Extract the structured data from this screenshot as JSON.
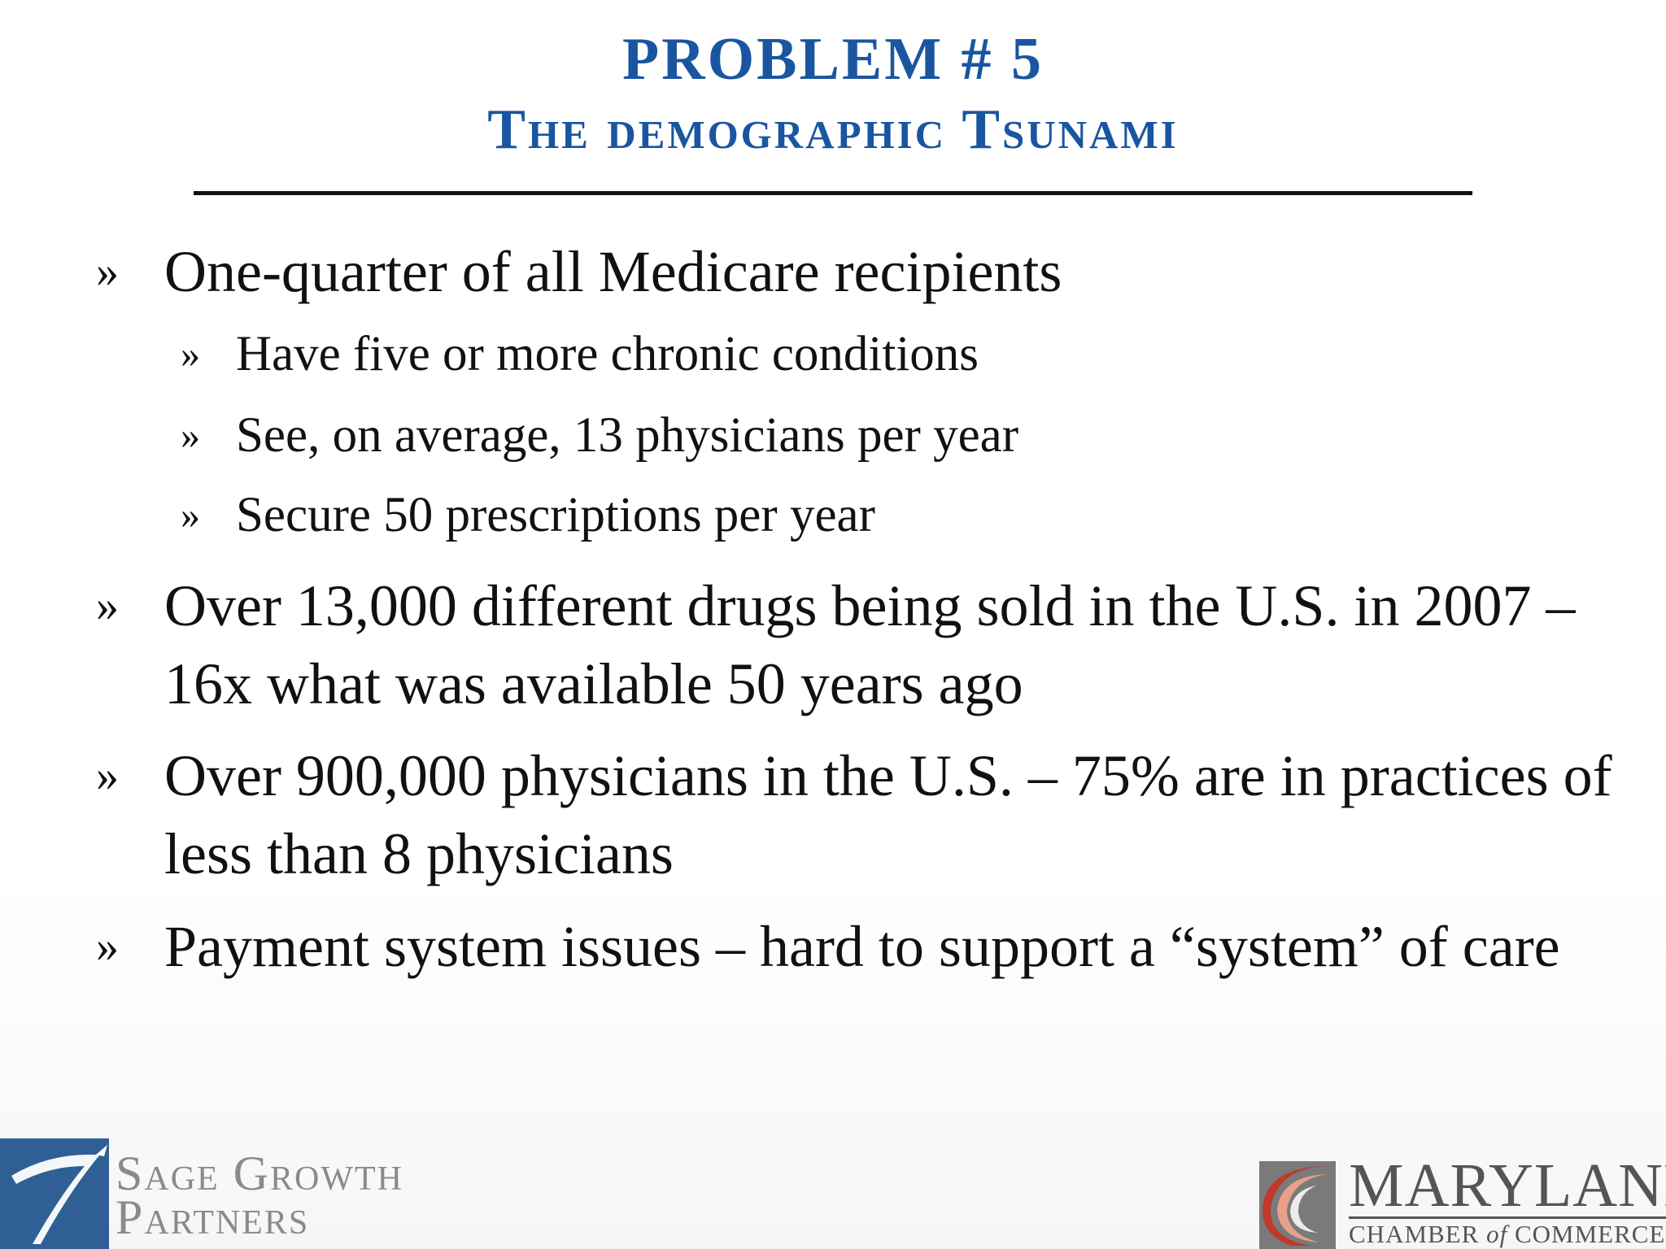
{
  "slide": {
    "title_line1": "PROBLEM # 5",
    "title_line2_parts": [
      "The demographic ",
      "Tsunami"
    ]
  },
  "bullets": [
    {
      "text": "One-quarter of all Medicare recipients",
      "sub": [
        "Have five or more chronic conditions",
        "See, on average, 13 physicians per year",
        "Secure 50 prescriptions per year"
      ]
    },
    {
      "text": "Over 13,000 different drugs being sold in the U.S. in 2007 – 16x what was available 50 years ago"
    },
    {
      "text": "Over 900,000 physicians in the U.S. – 75% are in practices of less than 8 physicians"
    },
    {
      "text": "Payment system issues – hard to support a “system” of care"
    }
  ],
  "bullet_mark": "»",
  "footer": {
    "left_logo": {
      "line1": "Sage Growth",
      "line2": "Partners"
    },
    "right_logo": {
      "name": "MARYLAND",
      "sub_a": "CHAMBER ",
      "sub_of": "of",
      "sub_b": " COMMERCE"
    }
  },
  "colors": {
    "title": "#1a56a0",
    "body_text": "#111111",
    "logo_gray": "#8a8a8a",
    "sage_blue": "#2f5f95",
    "md_red": "#c0392b"
  }
}
